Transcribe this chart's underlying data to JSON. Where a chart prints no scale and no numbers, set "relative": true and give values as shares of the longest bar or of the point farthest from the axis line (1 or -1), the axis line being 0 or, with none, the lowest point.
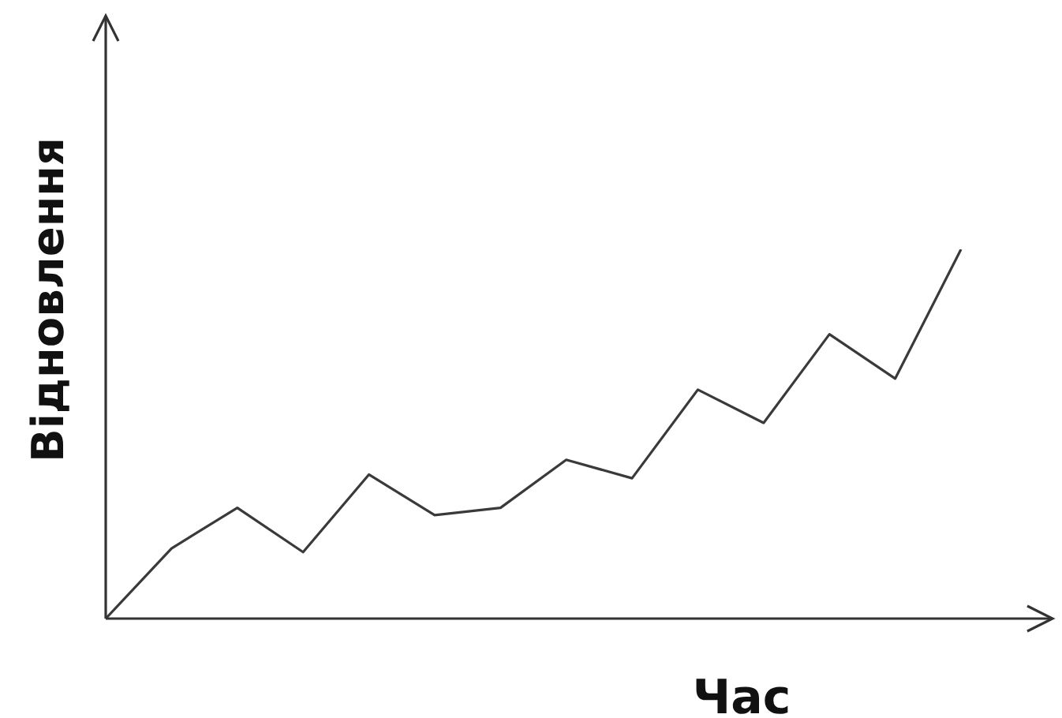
{
  "chart_data": {
    "type": "line",
    "xlabel": "Час",
    "ylabel": "Відновлення",
    "relative": true,
    "categories": [
      null,
      null,
      null,
      null,
      null,
      null,
      null,
      null,
      null,
      null,
      null,
      null,
      null,
      null
    ],
    "series": [
      {
        "color": "#3a3a3a",
        "values": [
          0,
          0.19,
          0.3,
          0.18,
          0.39,
          0.28,
          0.3,
          0.43,
          0.38,
          0.62,
          0.53,
          0.77,
          0.65,
          1
        ]
      }
    ]
  }
}
